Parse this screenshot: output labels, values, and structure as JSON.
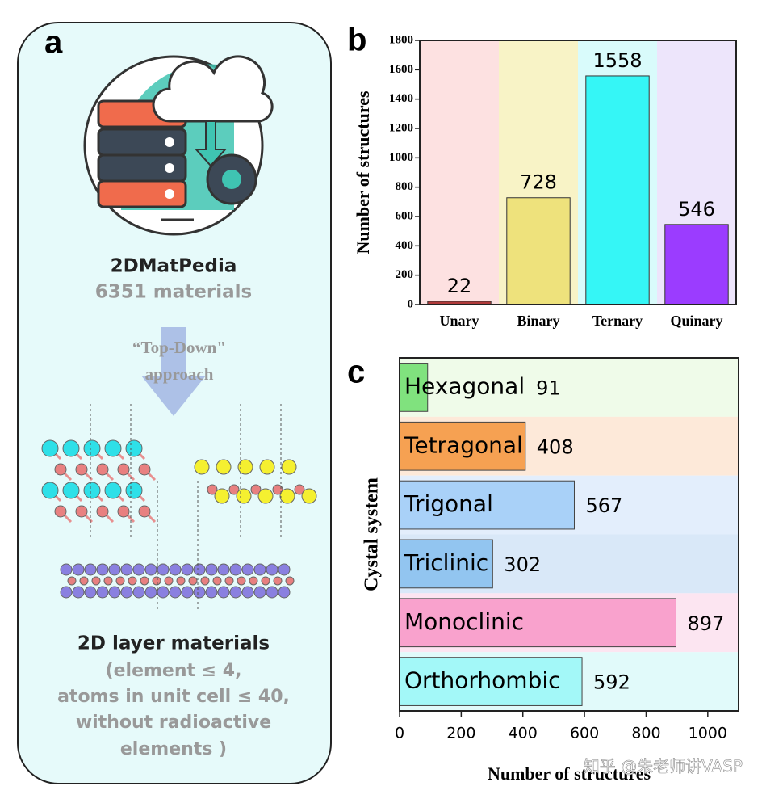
{
  "panel_a": {
    "label": "a",
    "database": "2DMatPedia",
    "count": "6351  materials",
    "method_line1": "“Top-Down\"",
    "method_line2": "approach",
    "result": "2D layer materials",
    "criteria": [
      "(element ≤ 4,",
      "atoms in unit cell ≤ 40,",
      "without radioactive",
      "elements )"
    ]
  },
  "chart_data": [
    {
      "type": "bar",
      "panel_label": "b",
      "ylabel": "Number of structures",
      "categories": [
        "Unary",
        "Binary",
        "Ternary",
        "Quinary"
      ],
      "values": [
        22,
        728,
        1558,
        546
      ],
      "colors": [
        "#b03a3a",
        "#eee27c",
        "#35f6f6",
        "#9b3cff"
      ],
      "band_colors": [
        "#fde1e1",
        "#f8f3c6",
        "#d9fbfb",
        "#ede5fb"
      ],
      "ylim": [
        0,
        1800
      ],
      "yticks": [
        0,
        200,
        400,
        600,
        800,
        1000,
        1200,
        1400,
        1600,
        1800
      ]
    },
    {
      "type": "barh",
      "panel_label": "c",
      "xlabel": "Number of structures",
      "ylabel": "Cystal system",
      "categories": [
        "Hexagonal",
        "Tetragonal",
        "Trigonal",
        "Triclinic",
        "Monoclinic",
        "Orthorhombic"
      ],
      "values": [
        91,
        408,
        567,
        302,
        897,
        592
      ],
      "colors": [
        "#80e27e",
        "#f6a152",
        "#a9d1f8",
        "#92c5f0",
        "#f9a2cd",
        "#a3f8f8"
      ],
      "band_colors": [
        "#effbe9",
        "#fde9d9",
        "#e3eefc",
        "#d9e8f8",
        "#fce5f1",
        "#e1fafa"
      ],
      "xlim": [
        0,
        1100
      ],
      "xticks": [
        0,
        200,
        400,
        600,
        800,
        1000
      ]
    }
  ],
  "watermark": "知乎 @朱老师讲VASP"
}
